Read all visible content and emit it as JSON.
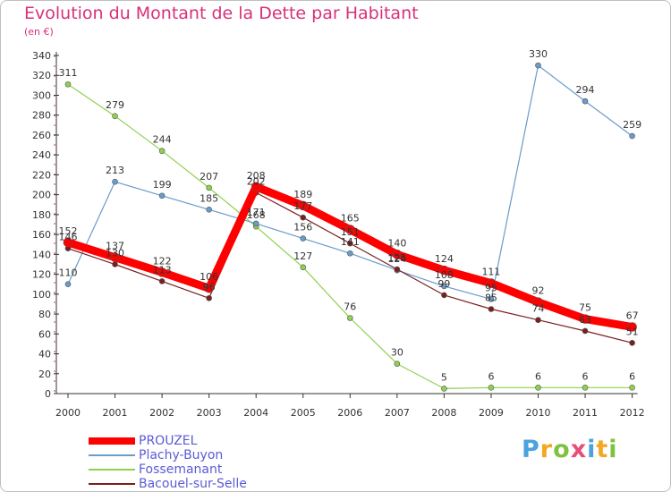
{
  "chart_data": {
    "type": "line",
    "title": "Evolution du Montant de la Dette par Habitant",
    "unit_label": "(en €)",
    "categories": [
      "2000",
      "2001",
      "2002",
      "2003",
      "2004",
      "2005",
      "2006",
      "2007",
      "2008",
      "2009",
      "2010",
      "2011",
      "2012"
    ],
    "ylim": [
      0,
      340
    ],
    "y_ticks": [
      0,
      20,
      40,
      60,
      80,
      100,
      120,
      140,
      160,
      180,
      200,
      220,
      240,
      260,
      280,
      300,
      320,
      340
    ],
    "grid": false,
    "legend_position": "bottom-left",
    "series": [
      {
        "name": "PROUZEL",
        "color": "#ff0000",
        "values": [
          152,
          137,
          122,
          106,
          208,
          189,
          165,
          140,
          124,
          111,
          92,
          75,
          67
        ]
      },
      {
        "name": "Plachy-Buyon",
        "color": "#6a9bc9",
        "values": [
          110,
          213,
          199,
          185,
          171,
          156,
          141,
          124,
          108,
          95,
          330,
          294,
          259
        ]
      },
      {
        "name": "Fossemanant",
        "color": "#8fd14f",
        "values": [
          311,
          279,
          244,
          207,
          168,
          127,
          76,
          30,
          5,
          6,
          6,
          6,
          6
        ]
      },
      {
        "name": "Bacouel-sur-Selle",
        "color": "#7a1f1f",
        "values": [
          146,
          130,
          113,
          96,
          202,
          177,
          151,
          125,
          99,
          85,
          74,
          63,
          51
        ]
      }
    ]
  },
  "logo": {
    "letters": [
      "P",
      "r",
      "o",
      "x",
      "i",
      "t",
      "i"
    ],
    "colors": [
      "#4aa3df",
      "#f5a623",
      "#7fc241",
      "#e94e77",
      "#4aa3df",
      "#f5a623",
      "#7fc241"
    ]
  }
}
